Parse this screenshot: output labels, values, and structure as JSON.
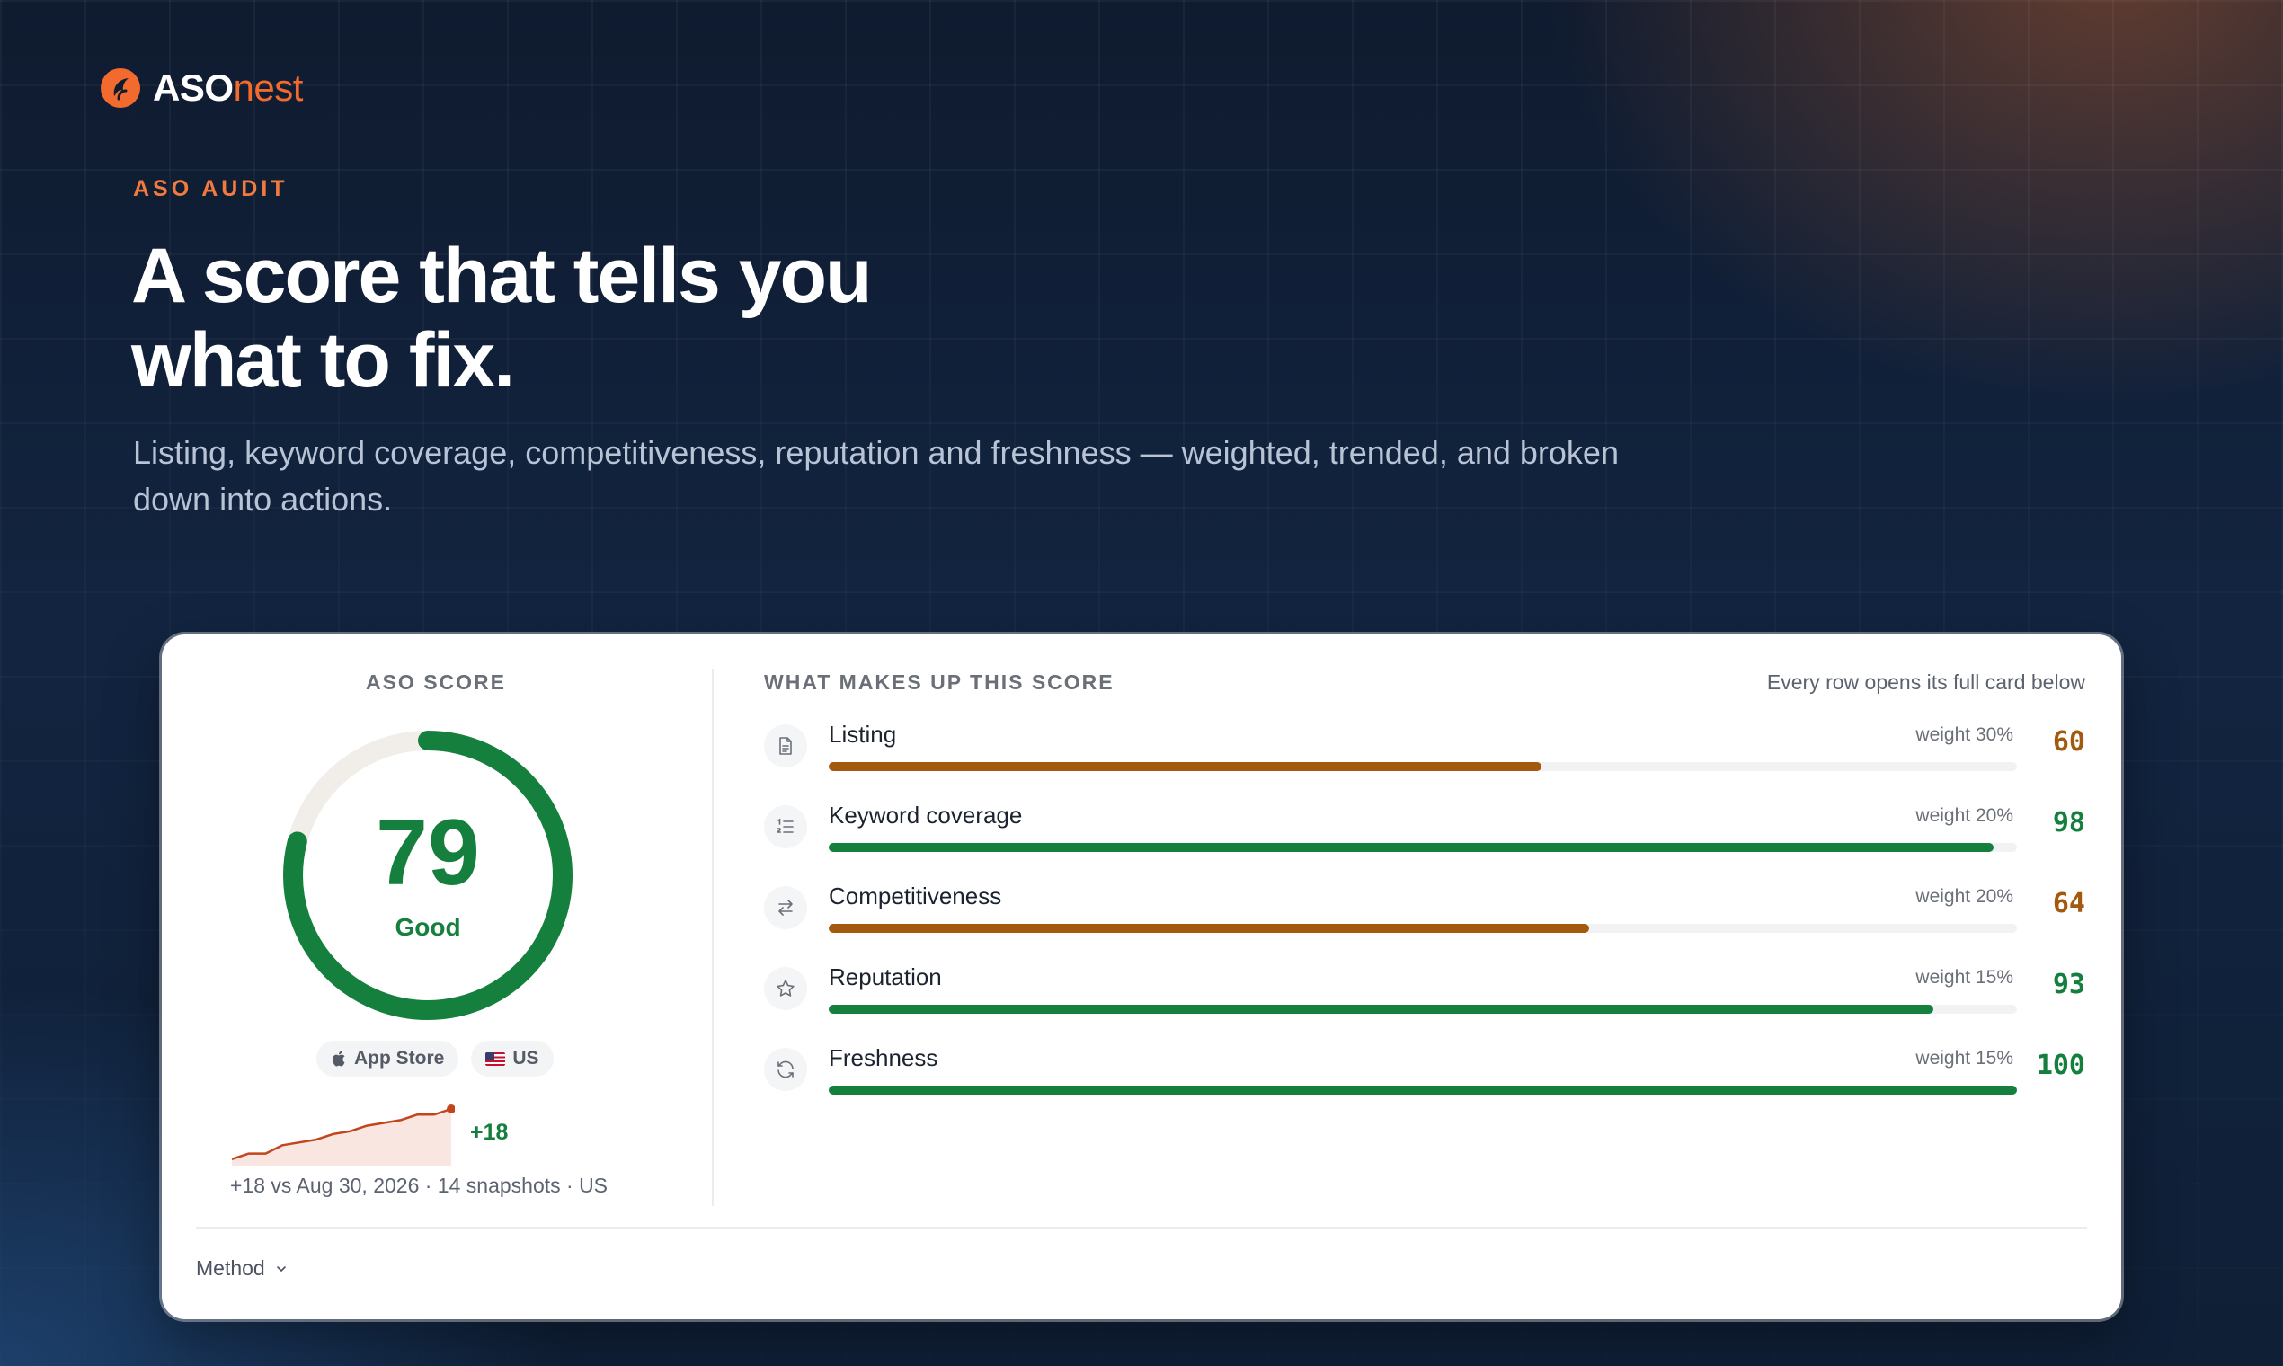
{
  "brand": {
    "name_primary": "ASO",
    "name_secondary": "nest",
    "accent": "#f26a2e"
  },
  "hero": {
    "eyebrow": "ASO AUDIT",
    "headline_line1": "A score that tells you",
    "headline_line2": "what to fix.",
    "subhead": "Listing, keyword coverage, competitiveness, reputation and freshness — weighted, trended, and broken down into actions."
  },
  "score": {
    "label": "ASO SCORE",
    "value": "79",
    "value_number": 79,
    "rating": "Good",
    "store": "App Store",
    "country": "US",
    "trend_delta": "+18",
    "trend_note": "+18 vs Aug 30, 2026 · 14 snapshots · US",
    "sparkline": [
      61,
      63,
      63,
      66,
      67,
      68,
      70,
      71,
      73,
      74,
      75,
      77,
      77,
      79
    ],
    "good_color": "#15803d"
  },
  "breakdown": {
    "title": "WHAT MAKES UP THIS SCORE",
    "note": "Every row opens its full card below",
    "rows": [
      {
        "name": "Listing",
        "weight": "weight 30%",
        "score": "60",
        "value": 60,
        "color": "#a35a0e",
        "icon": "document-icon"
      },
      {
        "name": "Keyword coverage",
        "weight": "weight 20%",
        "score": "98",
        "value": 98,
        "color": "#15803d",
        "icon": "numbered-list-icon"
      },
      {
        "name": "Competitiveness",
        "weight": "weight 20%",
        "score": "64",
        "value": 64,
        "color": "#a35a0e",
        "icon": "swap-arrows-icon"
      },
      {
        "name": "Reputation",
        "weight": "weight 15%",
        "score": "93",
        "value": 93,
        "color": "#15803d",
        "icon": "star-icon"
      },
      {
        "name": "Freshness",
        "weight": "weight 15%",
        "score": "100",
        "value": 100,
        "color": "#15803d",
        "icon": "refresh-icon"
      }
    ]
  },
  "footer": {
    "method_label": "Method"
  }
}
